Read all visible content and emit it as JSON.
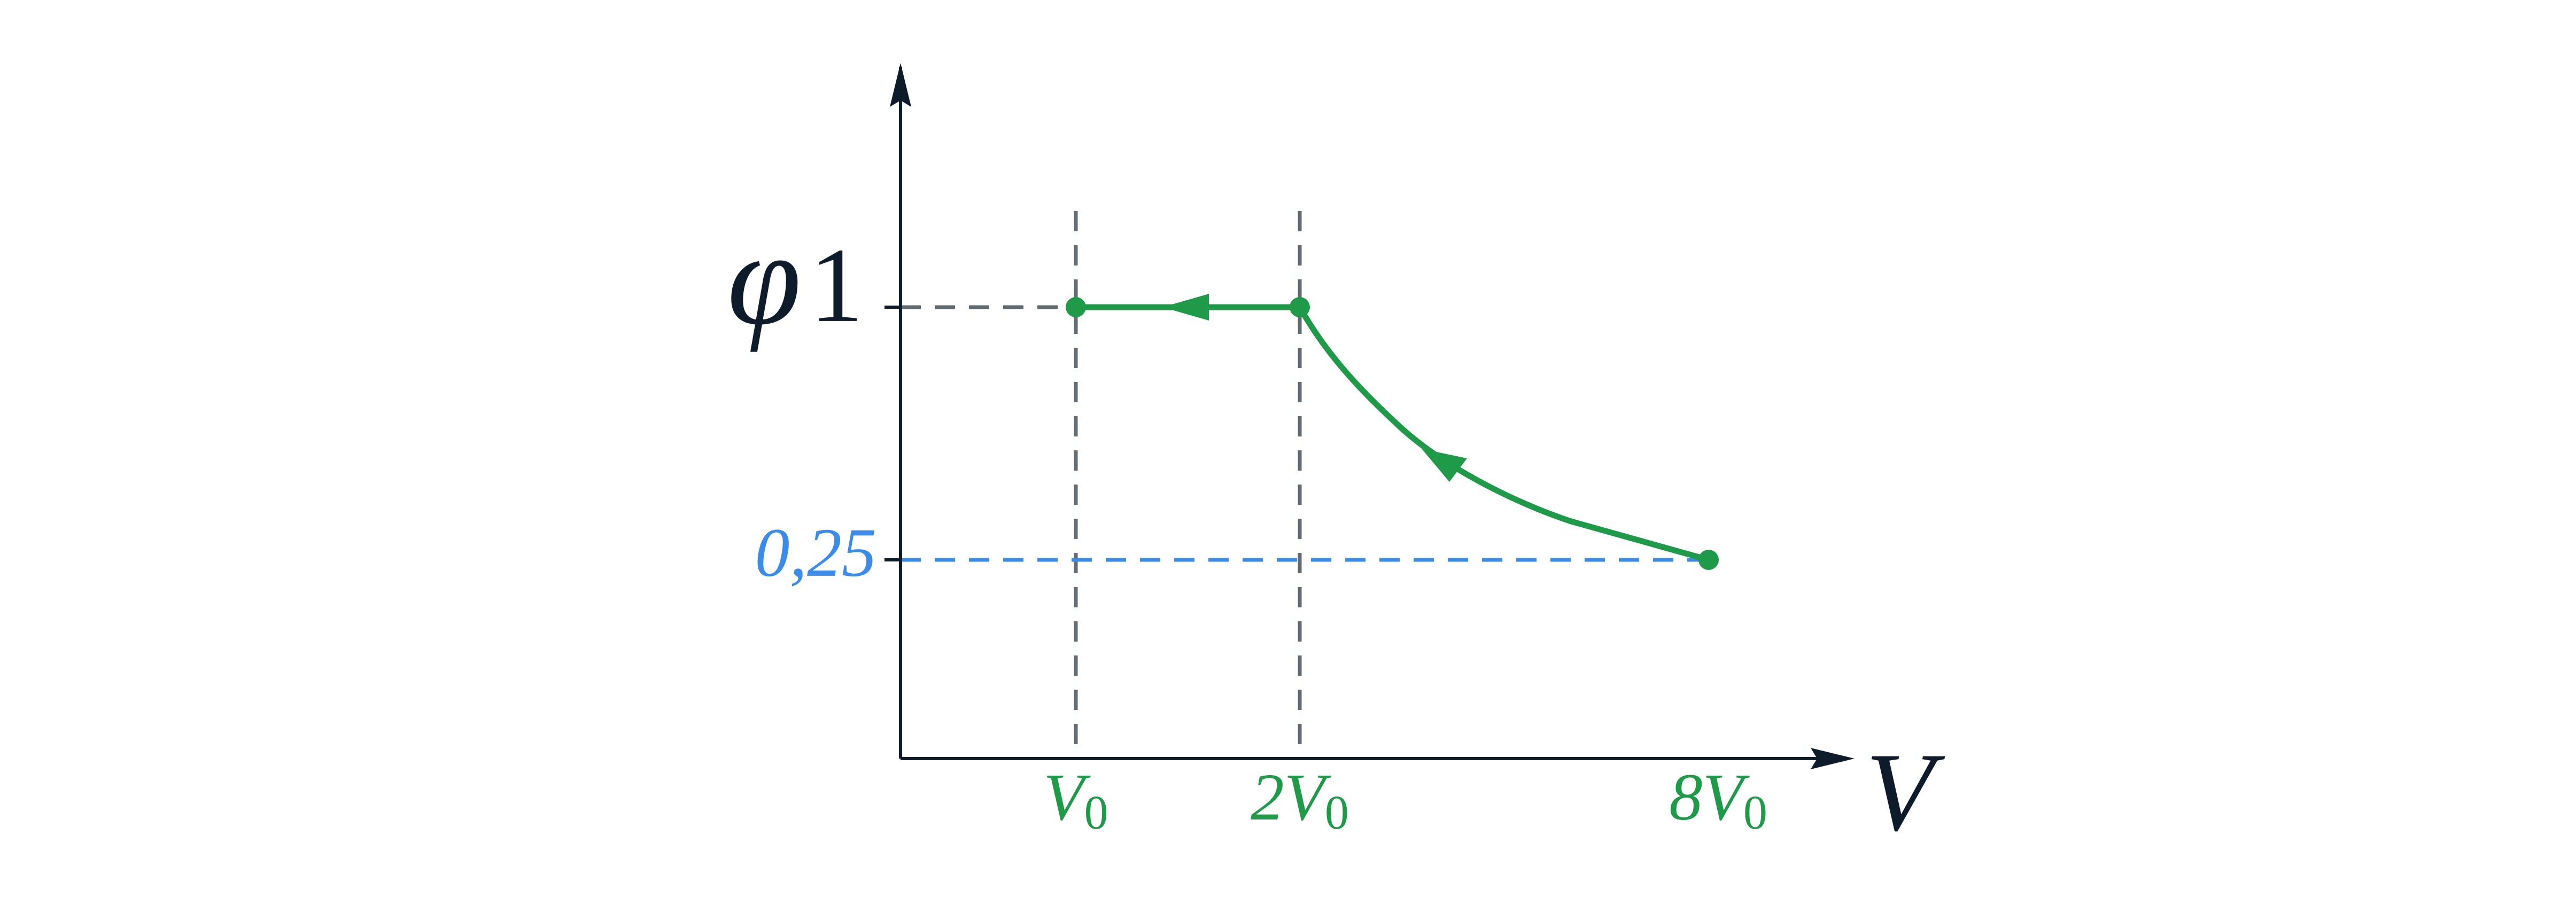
{
  "axes": {
    "y_label": "φ",
    "x_label": "V"
  },
  "y_ticks": [
    "1",
    "0,25"
  ],
  "x_ticks": [
    {
      "main": "V",
      "sub": "0"
    },
    {
      "main": "2V",
      "sub": "0"
    },
    {
      "main": "8V",
      "sub": "0"
    }
  ]
}
